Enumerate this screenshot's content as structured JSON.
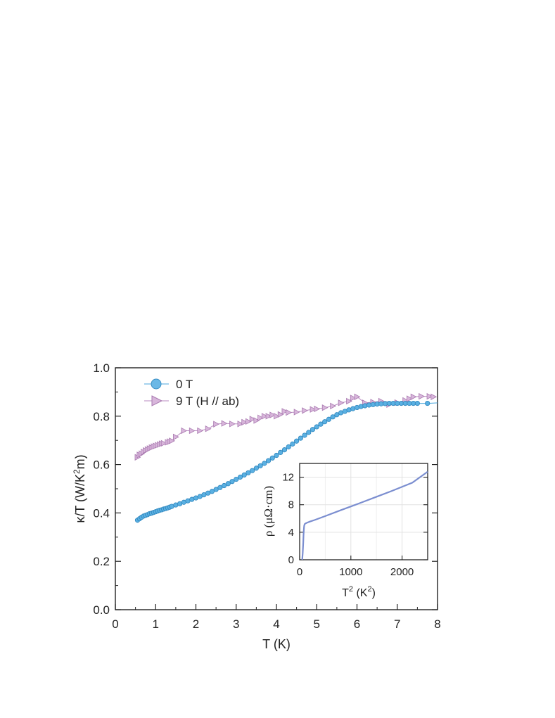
{
  "chart_data": [
    {
      "type": "scatter",
      "xlabel": "T (K)",
      "ylabel_main": "κ/T (W/K",
      "ylabel_sup": "2",
      "ylabel_tail": "m)",
      "xlim": [
        0,
        8
      ],
      "ylim": [
        0,
        1.0
      ],
      "xticks": [
        "0",
        "1",
        "2",
        "3",
        "4",
        "5",
        "6",
        "7",
        "8"
      ],
      "yticks": [
        "0.0",
        "0.2",
        "0.4",
        "0.6",
        "0.8",
        "1.0"
      ],
      "legend_position": "top-left",
      "series": [
        {
          "name": "0 T",
          "marker": "circle",
          "color": "#4aa6dc",
          "x": [
            0.55,
            0.6,
            0.65,
            0.7,
            0.75,
            0.8,
            0.85,
            0.9,
            0.95,
            1.0,
            1.05,
            1.1,
            1.15,
            1.2,
            1.25,
            1.3,
            1.35,
            1.4,
            1.5,
            1.6,
            1.7,
            1.8,
            1.9,
            2.0,
            2.1,
            2.2,
            2.3,
            2.4,
            2.5,
            2.6,
            2.7,
            2.8,
            2.9,
            3.0,
            3.1,
            3.2,
            3.3,
            3.4,
            3.5,
            3.6,
            3.7,
            3.8,
            3.9,
            4.0,
            4.1,
            4.2,
            4.3,
            4.4,
            4.5,
            4.6,
            4.7,
            4.8,
            4.9,
            5.0,
            5.1,
            5.2,
            5.3,
            5.4,
            5.5,
            5.6,
            5.7,
            5.8,
            5.9,
            6.0,
            6.1,
            6.2,
            6.3,
            6.4,
            6.5,
            6.6,
            6.7,
            6.8,
            6.9,
            7.0,
            7.1,
            7.2,
            7.3,
            7.4,
            7.5,
            7.75
          ],
          "y": [
            0.37,
            0.376,
            0.382,
            0.387,
            0.39,
            0.393,
            0.397,
            0.399,
            0.402,
            0.405,
            0.408,
            0.411,
            0.413,
            0.416,
            0.418,
            0.421,
            0.424,
            0.427,
            0.433,
            0.438,
            0.444,
            0.45,
            0.456,
            0.462,
            0.468,
            0.475,
            0.482,
            0.489,
            0.497,
            0.505,
            0.513,
            0.521,
            0.53,
            0.539,
            0.548,
            0.557,
            0.566,
            0.575,
            0.585,
            0.595,
            0.605,
            0.616,
            0.627,
            0.638,
            0.65,
            0.661,
            0.673,
            0.685,
            0.697,
            0.709,
            0.721,
            0.733,
            0.745,
            0.756,
            0.767,
            0.777,
            0.787,
            0.797,
            0.806,
            0.814,
            0.82,
            0.826,
            0.831,
            0.836,
            0.84,
            0.843,
            0.846,
            0.848,
            0.85,
            0.851,
            0.852,
            0.853,
            0.853,
            0.853,
            0.853,
            0.853,
            0.853,
            0.853,
            0.853,
            0.853
          ]
        },
        {
          "name": "9 T (H // ab)",
          "marker": "triangle-right",
          "color": "#b98ac0",
          "x": [
            0.55,
            0.6,
            0.65,
            0.7,
            0.75,
            0.8,
            0.85,
            0.9,
            0.95,
            1.0,
            1.05,
            1.1,
            1.15,
            1.2,
            1.3,
            1.35,
            1.4,
            1.5,
            1.7,
            1.9,
            2.1,
            2.3,
            2.5,
            2.7,
            2.9,
            3.1,
            3.2,
            3.3,
            3.4,
            3.5,
            3.6,
            3.7,
            3.8,
            3.9,
            4.0,
            4.1,
            4.2,
            4.3,
            4.5,
            4.7,
            4.9,
            5.0,
            5.2,
            5.4,
            5.6,
            5.8,
            5.9,
            6.0,
            6.2,
            6.4,
            6.6,
            6.8,
            7.0,
            7.2,
            7.3,
            7.4,
            7.6,
            7.8,
            7.9
          ],
          "y": [
            0.63,
            0.64,
            0.645,
            0.652,
            0.658,
            0.662,
            0.666,
            0.67,
            0.674,
            0.677,
            0.68,
            0.683,
            0.686,
            0.688,
            0.692,
            0.695,
            0.698,
            0.714,
            0.74,
            0.74,
            0.74,
            0.748,
            0.767,
            0.77,
            0.768,
            0.768,
            0.775,
            0.778,
            0.788,
            0.782,
            0.793,
            0.8,
            0.8,
            0.805,
            0.8,
            0.807,
            0.82,
            0.815,
            0.817,
            0.823,
            0.828,
            0.83,
            0.835,
            0.842,
            0.855,
            0.862,
            0.875,
            0.88,
            0.855,
            0.858,
            0.862,
            0.848,
            0.856,
            0.865,
            0.872,
            0.88,
            0.882,
            0.882,
            0.88
          ]
        }
      ]
    },
    {
      "type": "line",
      "xlabel_base": "T",
      "xlabel_sup": "2",
      "xlabel_unit": " (K",
      "xlabel_unit_sup": "2",
      "xlabel_close": ")",
      "ylabel": "ρ (μΩ·cm)",
      "xlim": [
        0,
        2500
      ],
      "ylim": [
        0,
        14
      ],
      "xticks": [
        "0",
        "1000",
        "2000"
      ],
      "yticks": [
        "0",
        "4",
        "8",
        "12"
      ],
      "grid": true,
      "series": [
        {
          "color": "#7b8ed0",
          "x": [
            50,
            60,
            70,
            75,
            80,
            85,
            90,
            100,
            120,
            150,
            200,
            300,
            500,
            800,
            1000,
            1200,
            1500,
            1800,
            2000,
            2200,
            2500
          ],
          "y": [
            0,
            1.0,
            2.5,
            3.5,
            4.2,
            4.7,
            5.0,
            5.2,
            5.3,
            5.4,
            5.55,
            5.8,
            6.35,
            7.2,
            7.75,
            8.3,
            9.15,
            10.0,
            10.6,
            11.2,
            12.8
          ]
        }
      ]
    }
  ]
}
